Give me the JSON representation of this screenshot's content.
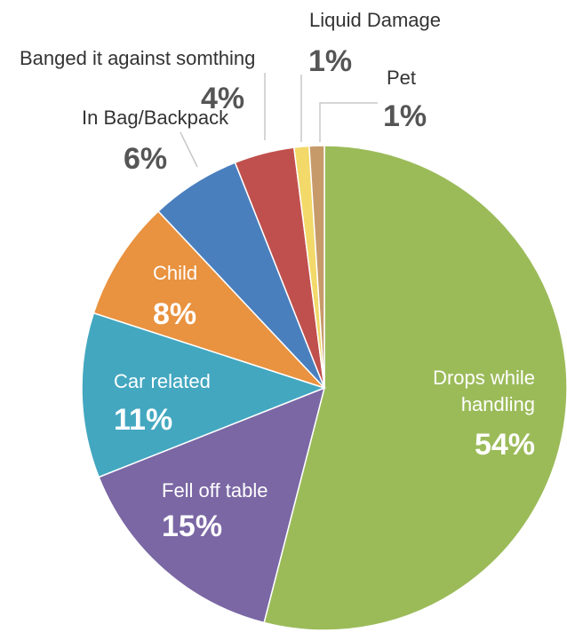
{
  "chart_data": {
    "type": "pie",
    "title": "",
    "series": [
      {
        "name": "Drops while handling",
        "label_lines": [
          "Drops while",
          "handling"
        ],
        "value": 54,
        "value_label": "54%",
        "color": "#9bbb59"
      },
      {
        "name": "Fell off table",
        "label_lines": [
          "Fell off table"
        ],
        "value": 15,
        "value_label": "15%",
        "color": "#7a67a4"
      },
      {
        "name": "Car related",
        "label_lines": [
          "Car related"
        ],
        "value": 11,
        "value_label": "11%",
        "color": "#43a7c0"
      },
      {
        "name": "Child",
        "label_lines": [
          "Child"
        ],
        "value": 8,
        "value_label": "8%",
        "color": "#e9923f"
      },
      {
        "name": "In Bag/Backpack",
        "label_lines": [
          "In Bag/Backpack"
        ],
        "value": 6,
        "value_label": "6%",
        "color": "#4a7fbe"
      },
      {
        "name": "Banged it against somthing",
        "label_lines": [
          "Banged it against somthing"
        ],
        "value": 4,
        "value_label": "4%",
        "color": "#c0504d"
      },
      {
        "name": "Liquid Damage",
        "label_lines": [
          "Liquid Damage"
        ],
        "value": 1,
        "value_label": "1%",
        "color": "#f2d969"
      },
      {
        "name": "Pet",
        "label_lines": [
          "Pet"
        ],
        "value": 1,
        "value_label": "1%",
        "color": "#c79a6a"
      }
    ],
    "legend": "none"
  }
}
